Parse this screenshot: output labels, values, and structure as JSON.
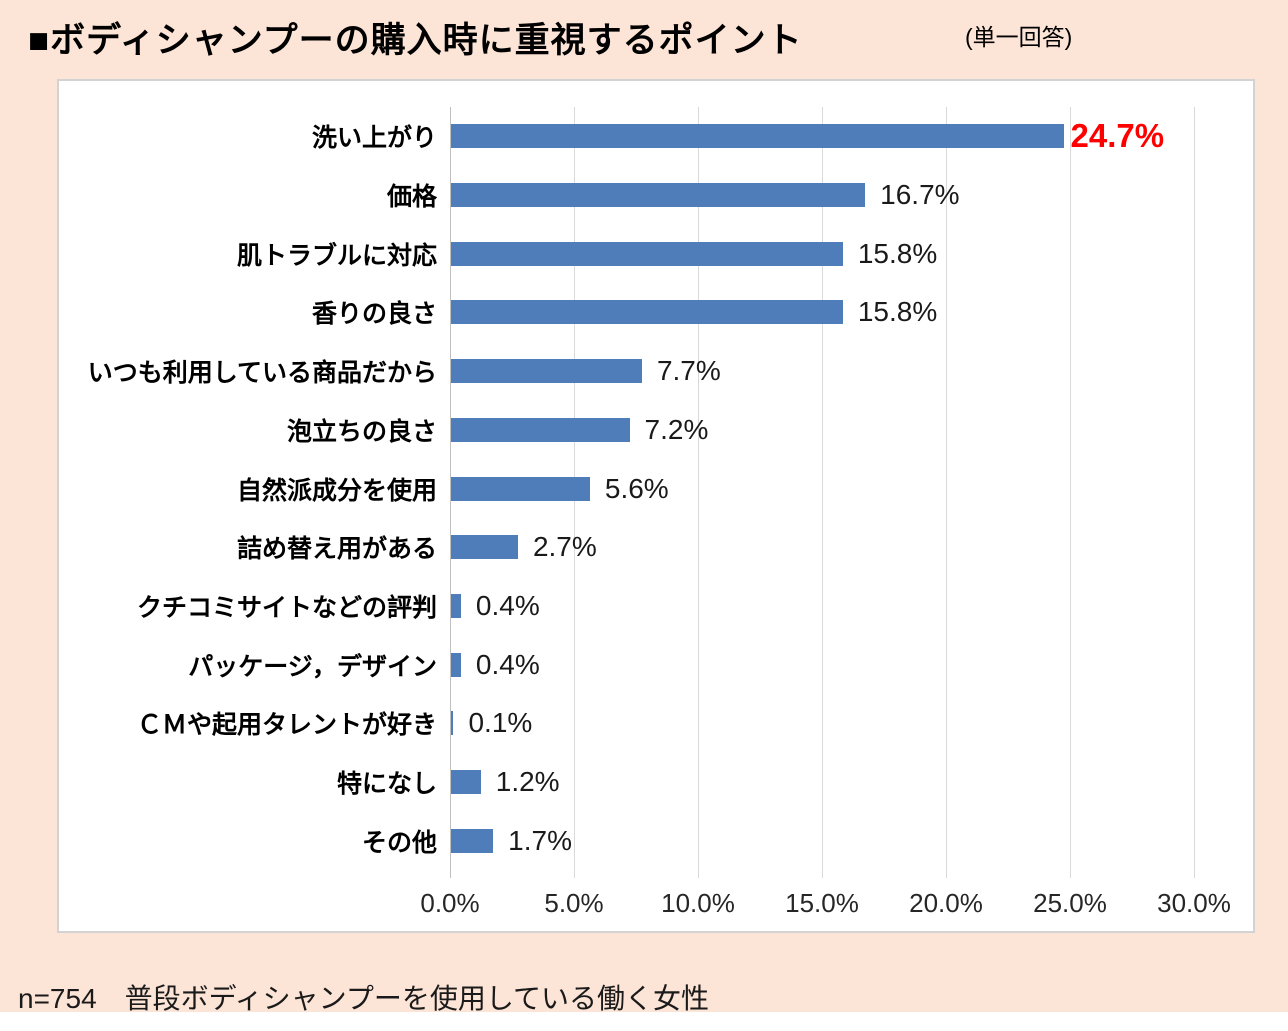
{
  "page": {
    "title": "■ボディシャンプーの購入時に重視するポイント",
    "subtitle": "(単一回答)",
    "footer": "n=754　普段ボディシャンプーを使用している働く女性"
  },
  "colors": {
    "background": "#fce4d6",
    "panel": "#ffffff",
    "bar": "#4f7dba",
    "highlight_label": "#ff0000",
    "gridline": "#d9d9d9",
    "axis_line": "#bfbfbf"
  },
  "chart_data": {
    "type": "bar",
    "orientation": "horizontal",
    "title": "ボディシャンプーの購入時に重視するポイント",
    "categories": [
      "洗い上がり",
      "価格",
      "肌トラブルに対応",
      "香りの良さ",
      "いつも利用している商品だから",
      "泡立ちの良さ",
      "自然派成分を使用",
      "詰め替え用がある",
      "クチコミサイトなどの評判",
      "パッケージ，デザイン",
      "ＣＭや起用タレントが好き",
      "特になし",
      "その他"
    ],
    "values": [
      24.7,
      16.7,
      15.8,
      15.8,
      7.7,
      7.2,
      5.6,
      2.7,
      0.4,
      0.4,
      0.1,
      1.2,
      1.7
    ],
    "data_labels": [
      "24.7%",
      "16.7%",
      "15.8%",
      "15.8%",
      "7.7%",
      "7.2%",
      "5.6%",
      "2.7%",
      "0.4%",
      "0.4%",
      "0.1%",
      "1.2%",
      "1.7%"
    ],
    "highlight_index": 0,
    "xlabel": "",
    "ylabel": "",
    "xlim": [
      0,
      30
    ],
    "x_tick_values": [
      0,
      5,
      10,
      15,
      20,
      25,
      30
    ],
    "x_tick_labels": [
      "0.0%",
      "5.0%",
      "10.0%",
      "15.0%",
      "20.0%",
      "25.0%",
      "30.0%"
    ],
    "grid": true,
    "legend": false
  }
}
